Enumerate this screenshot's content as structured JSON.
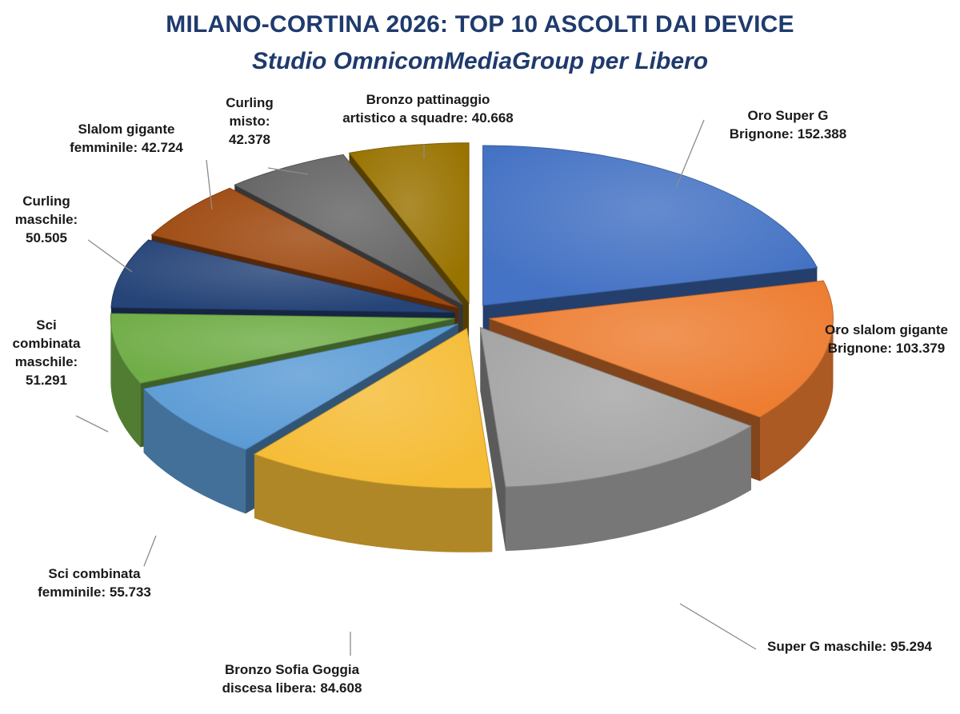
{
  "header": {
    "title": "MILANO-CORTINA 2026: TOP 10 ASCOLTI DAI DEVICE",
    "subtitle": "Studio OmnicomMediaGroup per Libero"
  },
  "chart_data": {
    "type": "pie",
    "style": "3d-exploded",
    "title": "MILANO-CORTINA 2026: TOP 10 ASCOLTI DAI DEVICE",
    "subtitle": "Studio OmnicomMediaGroup per Libero",
    "slices": [
      {
        "label": "Oro Super G Brignone: 152.388",
        "value": 152388,
        "color": "#4472c4"
      },
      {
        "label": "Oro slalom gigante Brignone: 103.379",
        "value": 103379,
        "color": "#ed7d31"
      },
      {
        "label": "Super G maschile: 95.294",
        "value": 95294,
        "color": "#a5a5a5"
      },
      {
        "label": "Bronzo Sofia Goggia discesa libera: 84.608",
        "value": 84608,
        "color": "#f5bc36"
      },
      {
        "label": "Sci combinata femminile: 55.733",
        "value": 55733,
        "color": "#5b9bd5"
      },
      {
        "label": "Sci combinata maschile: 51.291",
        "value": 51291,
        "color": "#70ad47"
      },
      {
        "label": "Curling maschile: 50.505",
        "value": 50505,
        "color": "#264478"
      },
      {
        "label": "Slalom gigante femminile: 42.724",
        "value": 42724,
        "color": "#9e480e"
      },
      {
        "label": "Curling misto: 42.378",
        "value": 42378,
        "color": "#636363"
      },
      {
        "label": "Bronzo pattinaggio artistico a squadre: 40.668",
        "value": 40668,
        "color": "#997300"
      }
    ],
    "legend": "none",
    "data_labels": "outside with leader lines"
  }
}
